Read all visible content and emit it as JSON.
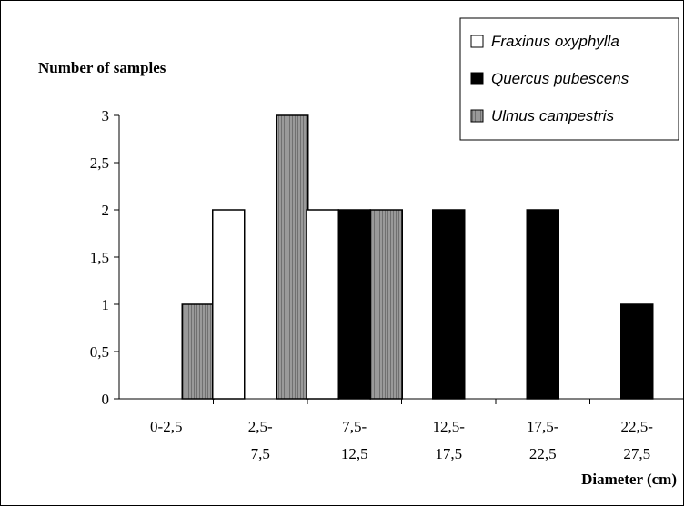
{
  "chart_data": {
    "type": "bar",
    "ylabel": "Number of samples",
    "xlabel": "Diameter (cm)",
    "categories": [
      [
        "0-2,5"
      ],
      [
        "2,5-",
        "7,5"
      ],
      [
        "7,5-",
        "12,5"
      ],
      [
        "12,5-",
        "17,5"
      ],
      [
        "17,5-",
        "22,5"
      ],
      [
        "22,5-",
        "27,5"
      ]
    ],
    "ylim": [
      0,
      3
    ],
    "yticks": [
      "0",
      "0,5",
      "1",
      "1,5",
      "2",
      "2,5",
      "3"
    ],
    "grid": false,
    "legend_position": "top-right",
    "series": [
      {
        "name": "Fraxinus oxyphylla",
        "color": "#ffffff",
        "values": [
          0,
          2,
          2,
          0,
          0,
          0
        ]
      },
      {
        "name": "Quercus pubescens",
        "color": "#000000",
        "values": [
          0,
          0,
          2,
          2,
          2,
          1
        ]
      },
      {
        "name": "Ulmus campestris",
        "color": "#808080",
        "values": [
          1,
          3,
          2,
          0,
          0,
          0
        ]
      }
    ]
  }
}
